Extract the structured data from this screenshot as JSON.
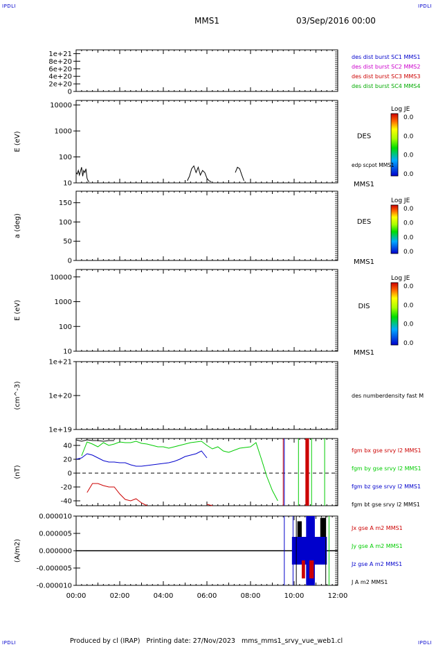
{
  "header": {
    "spacecraft": "MMS1",
    "date": "03/Sep/2016 00:00",
    "corner_tl": "IPDLI",
    "corner_tr": "IPDLI",
    "corner_bl": "IPDLI",
    "corner_br": "IPDLI"
  },
  "footer": {
    "text": "Produced by cl (IRAP)   Printing date: 27/Nov/2023   mms_mms1_srvy_vue_web1.cl"
  },
  "chart_data": [
    {
      "type": "line",
      "panel": "des-dist-burst",
      "ylabel": "",
      "ylim": [
        0,
        1.1e+21
      ],
      "yticks": [
        "1e+21",
        "8e+20",
        "6e+20",
        "4e+20",
        "2e+20",
        "0"
      ],
      "ytick_values": [
        1e+21,
        8e+20,
        6e+20,
        4e+20,
        2e+20,
        0
      ],
      "dashed_zero": true,
      "legend": [
        {
          "name": "des dist burst SC1 MMS1",
          "color": "#0000cc"
        },
        {
          "name": "des dist burst SC2 MMS2",
          "color": "#cc00cc"
        },
        {
          "name": "des dist burst SC3 MMS3",
          "color": "#cc0000"
        },
        {
          "name": "des dist burst SC4 MMS4",
          "color": "#00aa00"
        }
      ]
    },
    {
      "type": "heatmap",
      "panel": "des-energy",
      "ylabel": "E (eV)",
      "yscale": "log",
      "ylim": [
        10,
        15000
      ],
      "yticks": [
        "10000",
        "1000",
        "100",
        "10"
      ],
      "ytick_values": [
        10000,
        1000,
        100,
        10
      ],
      "species": "DES",
      "bottom_label": "MMS1",
      "overlay_label": "edp scpot MMS1",
      "colorbar": {
        "title": "Log JE",
        "labels": [
          "0.0",
          "0.0",
          "0.0",
          "0.0"
        ]
      },
      "overlay_series": {
        "name": "edp scpot MMS1",
        "color": "#000000",
        "x_hours": [
          0.0,
          0.05,
          0.1,
          0.15,
          0.2,
          0.25,
          0.3,
          0.35,
          0.4,
          0.45,
          0.5,
          0.55,
          0.6,
          5.1,
          5.2,
          5.3,
          5.4,
          5.5,
          5.6,
          5.7,
          5.8,
          5.9,
          6.0,
          6.1,
          6.2,
          7.3,
          7.4,
          7.5,
          7.6,
          7.7,
          8.3
        ],
        "y_eV": [
          25,
          22,
          30,
          20,
          28,
          40,
          18,
          30,
          25,
          35,
          15,
          12,
          11,
          12,
          18,
          35,
          45,
          25,
          40,
          20,
          30,
          25,
          15,
          12,
          11,
          25,
          40,
          35,
          20,
          12,
          11
        ]
      }
    },
    {
      "type": "heatmap",
      "panel": "des-pitch",
      "ylabel": "a (deg)",
      "ylim": [
        0,
        180
      ],
      "yticks": [
        "150",
        "100",
        "50",
        "0"
      ],
      "ytick_values": [
        150,
        100,
        50,
        0
      ],
      "species": "DES",
      "bottom_label": "MMS1",
      "colorbar": {
        "title": "Log JE",
        "labels": [
          "0.0",
          "0.0",
          "0.0",
          "0.0"
        ]
      }
    },
    {
      "type": "heatmap",
      "panel": "dis-energy",
      "ylabel": "E (eV)",
      "yscale": "log",
      "ylim": [
        10,
        20000
      ],
      "yticks": [
        "10000",
        "1000",
        "100",
        "10"
      ],
      "ytick_values": [
        10000,
        1000,
        100,
        10
      ],
      "species": "DIS",
      "bottom_label": "MMS1",
      "colorbar": {
        "title": "Log JE",
        "labels": [
          "0.0",
          "0.0",
          "0.0",
          "0.0"
        ]
      }
    },
    {
      "type": "line",
      "panel": "des-density",
      "ylabel": "(cm^-3)",
      "yscale": "log",
      "ylim": [
        1e+19,
        1e+21
      ],
      "yticks": [
        "1e+21",
        "1e+20",
        "1e+19"
      ],
      "ytick_values": [
        1e+21,
        1e+20,
        1e+19
      ],
      "legend": [
        {
          "name": "des numberdensity fast M",
          "color": "#000000"
        }
      ]
    },
    {
      "type": "line",
      "panel": "fgm",
      "ylabel": "(nT)",
      "ylim": [
        -47,
        50
      ],
      "yticks": [
        "40",
        "20",
        "0",
        "-20",
        "-40"
      ],
      "ytick_values": [
        40,
        20,
        0,
        -20,
        -40
      ],
      "dashed_zero": true,
      "x_hours": [
        0.0,
        0.25,
        0.5,
        0.75,
        1.0,
        1.25,
        1.5,
        1.75,
        2.0,
        2.25,
        2.5,
        2.75,
        3.0,
        3.25,
        3.5,
        3.75,
        4.0,
        4.25,
        4.5,
        4.75,
        5.0,
        5.25,
        5.5,
        5.75,
        6.0,
        6.25,
        6.5,
        6.75,
        7.0,
        7.5,
        8.0,
        8.25,
        8.5,
        8.75,
        9.0,
        9.25,
        9.5
      ],
      "series": [
        {
          "name": "fgm bx gse srvy l2 MMS1",
          "color": "#cc0000",
          "values": [
            null,
            null,
            -28,
            -15,
            -15,
            -18,
            -20,
            -20,
            -30,
            -38,
            -40,
            -37,
            -43,
            -47,
            null,
            null,
            null,
            null,
            null,
            null,
            null,
            null,
            null,
            null,
            -45,
            -47,
            null,
            null,
            null,
            null,
            null,
            null,
            null,
            null,
            null,
            null,
            -10
          ]
        },
        {
          "name": "fgm by gse srvy l2 MMS1",
          "color": "#00cc00",
          "values": [
            null,
            25,
            45,
            42,
            38,
            44,
            40,
            42,
            45,
            44,
            44,
            46,
            43,
            42,
            40,
            38,
            38,
            36,
            38,
            40,
            42,
            44,
            45,
            46,
            40,
            35,
            38,
            32,
            30,
            36,
            38,
            44,
            20,
            -5,
            -25,
            -40,
            null
          ]
        },
        {
          "name": "fgm bz gse srvy l2 MMS1",
          "color": "#0000cc",
          "values": [
            20,
            22,
            28,
            26,
            22,
            18,
            16,
            16,
            15,
            15,
            12,
            10,
            10,
            11,
            12,
            13,
            14,
            15,
            17,
            20,
            24,
            26,
            28,
            32,
            22,
            null,
            null,
            null,
            null,
            null,
            null,
            null,
            null,
            null,
            null,
            null,
            40
          ]
        },
        {
          "name": "fgm bt gse srvy l2 MMS1",
          "color": "#000000",
          "values": [
            48,
            46,
            48,
            47,
            47,
            46,
            47,
            47,
            null,
            null,
            null,
            null,
            null,
            null,
            null,
            null,
            null,
            null,
            null,
            null,
            null,
            null,
            null,
            null,
            null,
            null,
            null,
            null,
            null,
            null,
            null,
            null,
            null,
            null,
            null,
            null,
            null
          ]
        }
      ]
    },
    {
      "type": "line",
      "panel": "current",
      "ylabel": "(A/m2)",
      "ylim": [
        -1e-05,
        1e-05
      ],
      "yticks": [
        "0.000010",
        "0.000005",
        "0.000000",
        "-0.000005",
        "-0.000010"
      ],
      "ytick_values": [
        1e-05,
        5e-06,
        0,
        -5e-06,
        -1e-05
      ],
      "xlabels": [
        "00:00",
        "02:00",
        "04:00",
        "06:00",
        "08:00",
        "10:00",
        "12:00"
      ],
      "x_ticks_hours": [
        0,
        2,
        4,
        6,
        8,
        10,
        12
      ],
      "series": [
        {
          "name": "Jx gse A m2 MMS1",
          "color": "#cc0000",
          "values": []
        },
        {
          "name": "Jy gse A m2 MMS1",
          "color": "#00cc00",
          "values": []
        },
        {
          "name": "Jz gse A m2 MMS1",
          "color": "#0000cc",
          "values": []
        },
        {
          "name": "J A m2 MMS1",
          "color": "#000000",
          "values": []
        }
      ]
    }
  ]
}
